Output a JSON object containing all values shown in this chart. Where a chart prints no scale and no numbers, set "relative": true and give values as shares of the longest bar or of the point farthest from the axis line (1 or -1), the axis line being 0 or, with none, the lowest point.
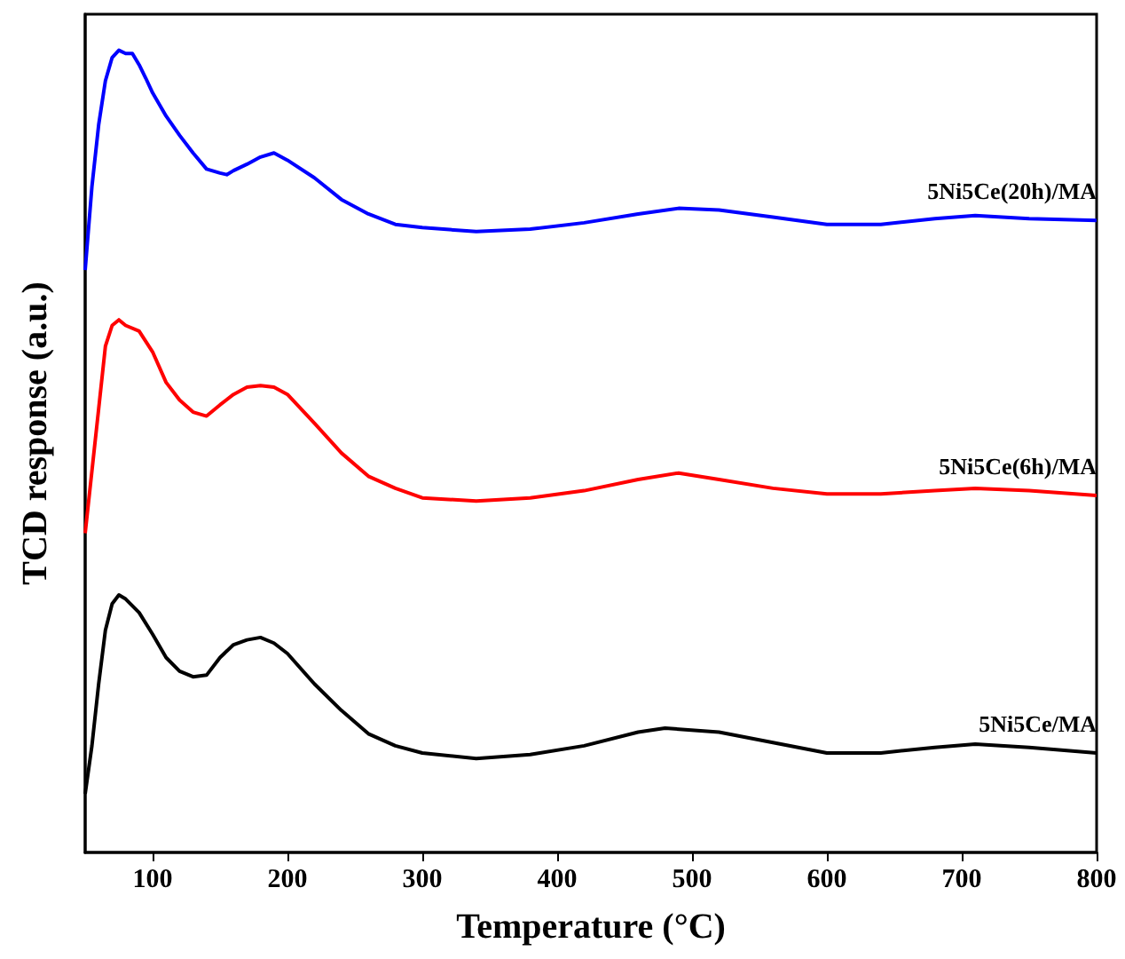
{
  "chart_data": {
    "type": "line",
    "xlabel": "Temperature (°C)",
    "ylabel": "TCD response (a.u.)",
    "relative": true,
    "xlim": [
      50,
      800
    ],
    "xticks": [
      100,
      200,
      300,
      400,
      500,
      600,
      700,
      800
    ],
    "grid": false,
    "legend": false,
    "marker": "none",
    "line_style": "solid",
    "x": [
      50,
      55,
      60,
      65,
      70,
      75,
      80,
      85,
      90,
      95,
      100,
      110,
      120,
      130,
      140,
      150,
      155,
      160,
      170,
      180,
      190,
      200,
      220,
      240,
      260,
      280,
      300,
      340,
      380,
      420,
      460,
      490,
      520,
      560,
      600,
      640,
      680,
      710,
      750,
      800
    ],
    "series": [
      {
        "name": "5Ni5Ce(20h)/MA",
        "color": "#0000ff",
        "values": [
          0.726,
          0.83,
          0.907,
          0.962,
          0.991,
          1.0,
          0.996,
          0.996,
          0.982,
          0.965,
          0.947,
          0.918,
          0.894,
          0.872,
          0.852,
          0.847,
          0.845,
          0.85,
          0.858,
          0.867,
          0.872,
          0.863,
          0.841,
          0.814,
          0.796,
          0.783,
          0.779,
          0.774,
          0.777,
          0.785,
          0.796,
          0.803,
          0.801,
          0.792,
          0.783,
          0.783,
          0.79,
          0.794,
          0.79,
          0.788
        ]
      },
      {
        "name": "5Ni5Ce(6h)/MA",
        "color": "#ff0000",
        "x": [
          50,
          60,
          65,
          70,
          75,
          80,
          90,
          100,
          110,
          120,
          130,
          140,
          150,
          160,
          170,
          180,
          190,
          200,
          220,
          240,
          260,
          280,
          300,
          340,
          380,
          420,
          460,
          490,
          520,
          560,
          600,
          640,
          680,
          710,
          750,
          800
        ],
        "values": [
          0.398,
          0.553,
          0.631,
          0.657,
          0.664,
          0.657,
          0.65,
          0.624,
          0.586,
          0.564,
          0.549,
          0.544,
          0.558,
          0.571,
          0.58,
          0.582,
          0.58,
          0.571,
          0.535,
          0.498,
          0.469,
          0.454,
          0.442,
          0.438,
          0.442,
          0.451,
          0.465,
          0.473,
          0.465,
          0.454,
          0.447,
          0.447,
          0.451,
          0.454,
          0.451,
          0.445
        ]
      },
      {
        "name": "5Ni5Ce/MA",
        "color": "#000000",
        "x": [
          50,
          55,
          60,
          65,
          70,
          75,
          80,
          90,
          100,
          110,
          120,
          130,
          140,
          150,
          160,
          170,
          180,
          190,
          200,
          220,
          240,
          260,
          280,
          300,
          340,
          380,
          420,
          460,
          480,
          520,
          560,
          600,
          640,
          680,
          710,
          750,
          800
        ],
        "values": [
          0.073,
          0.133,
          0.21,
          0.277,
          0.31,
          0.321,
          0.316,
          0.299,
          0.272,
          0.243,
          0.226,
          0.219,
          0.221,
          0.243,
          0.259,
          0.265,
          0.268,
          0.261,
          0.248,
          0.21,
          0.177,
          0.148,
          0.133,
          0.124,
          0.117,
          0.122,
          0.133,
          0.15,
          0.155,
          0.15,
          0.137,
          0.124,
          0.124,
          0.131,
          0.135,
          0.131,
          0.124
        ]
      }
    ]
  }
}
